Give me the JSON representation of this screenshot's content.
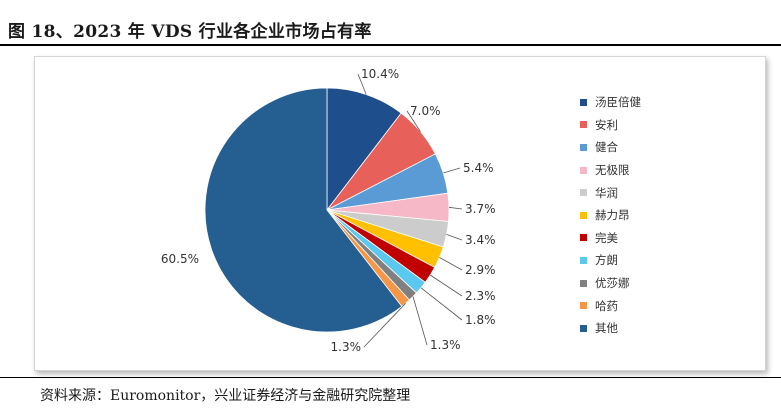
{
  "title": "图 18、2023 年 VDS 行业各企业市场占有率",
  "source": "资料来源：Euromonitor，兴业证券经济与金融研究院整理",
  "chart_data": {
    "type": "pie",
    "title": "",
    "categories": [
      "汤臣倍健",
      "安利",
      "健合",
      "无极限",
      "华润",
      "赫力昂",
      "完美",
      "方朗",
      "优莎娜",
      "哈药",
      "其他"
    ],
    "values": [
      10.4,
      7.0,
      5.4,
      3.7,
      3.4,
      2.9,
      2.3,
      1.8,
      1.3,
      1.3,
      60.5
    ],
    "labels": [
      "10.4%",
      "7.0%",
      "5.4%",
      "3.7%",
      "3.4%",
      "2.9%",
      "2.3%",
      "1.8%",
      "1.3%",
      "1.3%",
      "60.5%"
    ],
    "colors": [
      "#1f4e8c",
      "#e8605a",
      "#5b9bd5",
      "#f6b8c6",
      "#cccccc",
      "#ffc000",
      "#c00000",
      "#5bc8ef",
      "#808080",
      "#f79646",
      "#255e91"
    ],
    "legend_position": "right"
  }
}
